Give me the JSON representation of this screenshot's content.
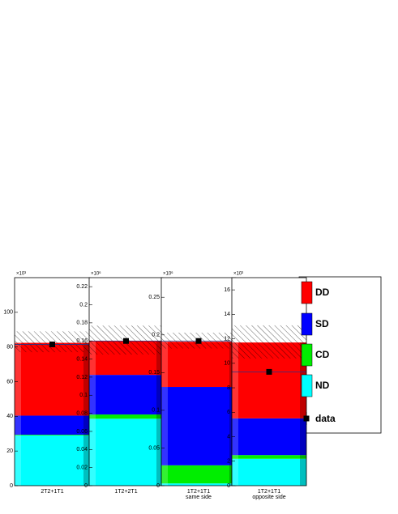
{
  "chart_data": [
    {
      "type": "bar",
      "categories": [
        "2T2+1T1"
      ],
      "y_multiplier": "×10³",
      "ylim": [
        0,
        120
      ],
      "yticks": [
        0,
        20,
        40,
        60,
        80,
        100
      ],
      "series": [
        {
          "name": "DD",
          "color": "#ff0000",
          "values": [
            42
          ]
        },
        {
          "name": "SD",
          "color": "#0000ff",
          "values": [
            11
          ]
        },
        {
          "name": "CD",
          "color": "#00ee00",
          "values": [
            0.4
          ]
        },
        {
          "name": "ND",
          "color": "#00ffff",
          "values": [
            29
          ]
        }
      ],
      "data": {
        "name": "data",
        "values": [
          81.5
        ]
      },
      "error_band": [
        77,
        89
      ]
    },
    {
      "type": "bar",
      "categories": [
        "1T2+2T1"
      ],
      "y_multiplier": "×10⁶",
      "ylim": [
        0,
        0.23
      ],
      "yticks": [
        0,
        0.02,
        0.04,
        0.06,
        0.08,
        0.1,
        0.12,
        0.14,
        0.16,
        0.18,
        0.2,
        0.22
      ],
      "series": [
        {
          "name": "DD",
          "color": "#ff0000",
          "values": [
            0.0375
          ]
        },
        {
          "name": "SD",
          "color": "#0000ff",
          "values": [
            0.0438
          ]
        },
        {
          "name": "CD",
          "color": "#00ee00",
          "values": [
            0.0047
          ]
        },
        {
          "name": "ND",
          "color": "#00ffff",
          "values": [
            0.074
          ]
        }
      ],
      "data": {
        "name": "data",
        "values": [
          0.16
        ]
      },
      "error_band": [
        0.145,
        0.177
      ]
    },
    {
      "type": "bar",
      "categories": [
        "1T2+1T1"
      ],
      "xlabel": "same side",
      "y_multiplier": "×10⁶",
      "ylim": [
        0,
        0.276
      ],
      "yticks": [
        0,
        0.05,
        0.1,
        0.15,
        0.2,
        0.25
      ],
      "series": [
        {
          "name": "DD",
          "color": "#ff0000",
          "values": [
            0.06
          ]
        },
        {
          "name": "SD",
          "color": "#0000ff",
          "values": [
            0.104
          ]
        },
        {
          "name": "CD",
          "color": "#00ee00",
          "values": [
            0.024
          ]
        },
        {
          "name": "ND",
          "color": "#00ffff",
          "values": [
            0.003
          ]
        }
      ],
      "data": {
        "name": "data",
        "values": [
          0.192
        ]
      },
      "error_band": [
        0.182,
        0.203
      ]
    },
    {
      "type": "bar",
      "categories": [
        "1T2+1T1"
      ],
      "xlabel": "opposite side",
      "y_multiplier": "×10³",
      "ylim": [
        0,
        17
      ],
      "yticks": [
        0,
        2,
        4,
        6,
        8,
        10,
        12,
        14,
        16
      ],
      "series": [
        {
          "name": "DD",
          "color": "#ff0000",
          "values": [
            6.2
          ]
        },
        {
          "name": "SD",
          "color": "#0000ff",
          "values": [
            3
          ]
        },
        {
          "name": "CD",
          "color": "#00ee00",
          "values": [
            0.3
          ]
        },
        {
          "name": "ND",
          "color": "#00ffff",
          "values": [
            2.2
          ]
        }
      ],
      "data": {
        "name": "data",
        "values": [
          9.3
        ]
      },
      "error_band": [
        10.4,
        13.1
      ]
    }
  ]
}
